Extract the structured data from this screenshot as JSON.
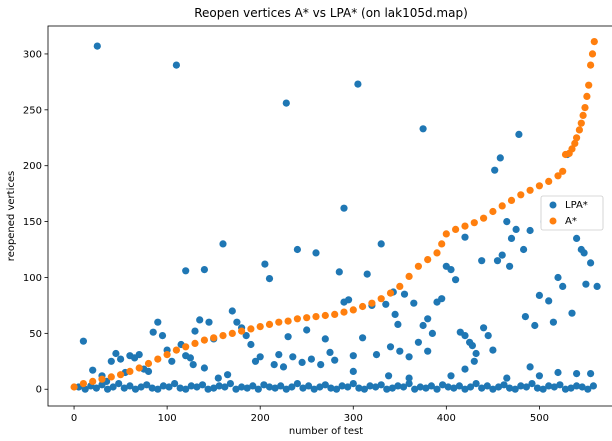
{
  "chart_data": {
    "type": "scatter",
    "title": "Reopen vertices A* vs LPA* (on lak105d.map)",
    "xlabel": "number of test",
    "ylabel": "reopened vertices",
    "xlim": [
      -28,
      578
    ],
    "ylim": [
      -15,
      325
    ],
    "xticks": [
      0,
      100,
      200,
      300,
      400,
      500
    ],
    "yticks": [
      0,
      50,
      100,
      150,
      200,
      250,
      300
    ],
    "grid": false,
    "legend_position": "center-right",
    "series": [
      {
        "name": "LPA*",
        "color": "#1f77b4",
        "points": [
          [
            25,
            307
          ],
          [
            110,
            290
          ],
          [
            228,
            256
          ],
          [
            305,
            273
          ],
          [
            375,
            233
          ],
          [
            478,
            228
          ],
          [
            530,
            210
          ],
          [
            290,
            162
          ],
          [
            458,
            207
          ],
          [
            452,
            196
          ],
          [
            465,
            150
          ],
          [
            470,
            135
          ],
          [
            490,
            142
          ],
          [
            475,
            143
          ],
          [
            483,
            125
          ],
          [
            505,
            150
          ],
          [
            540,
            135
          ],
          [
            545,
            125
          ],
          [
            555,
            113
          ],
          [
            520,
            100
          ],
          [
            548,
            122
          ],
          [
            260,
            122
          ],
          [
            240,
            125
          ],
          [
            330,
            130
          ],
          [
            160,
            130
          ],
          [
            315,
            103
          ],
          [
            285,
            105
          ],
          [
            205,
            112
          ],
          [
            210,
            99
          ],
          [
            120,
            106
          ],
          [
            140,
            107
          ],
          [
            400,
            110
          ],
          [
            405,
            107
          ],
          [
            420,
            136
          ],
          [
            438,
            115
          ],
          [
            455,
            115
          ],
          [
            460,
            120
          ],
          [
            468,
            110
          ],
          [
            410,
            98
          ],
          [
            395,
            81
          ],
          [
            390,
            78
          ],
          [
            500,
            84
          ],
          [
            510,
            79
          ],
          [
            525,
            92
          ],
          [
            550,
            94
          ],
          [
            343,
            87
          ],
          [
            355,
            85
          ],
          [
            290,
            78
          ],
          [
            295,
            80
          ],
          [
            320,
            75
          ],
          [
            335,
            76
          ],
          [
            345,
            67
          ],
          [
            348,
            58
          ],
          [
            365,
            77
          ],
          [
            380,
            63
          ],
          [
            385,
            50
          ],
          [
            375,
            57
          ],
          [
            415,
            51
          ],
          [
            420,
            48
          ],
          [
            428,
            39
          ],
          [
            432,
            32
          ],
          [
            440,
            55
          ],
          [
            445,
            48
          ],
          [
            425,
            42
          ],
          [
            450,
            35
          ],
          [
            485,
            65
          ],
          [
            495,
            57
          ],
          [
            515,
            60
          ],
          [
            535,
            68
          ],
          [
            562,
            92
          ],
          [
            10,
            43
          ],
          [
            45,
            32
          ],
          [
            50,
            27
          ],
          [
            60,
            30
          ],
          [
            70,
            31
          ],
          [
            85,
            51
          ],
          [
            90,
            60
          ],
          [
            95,
            48
          ],
          [
            100,
            35
          ],
          [
            105,
            25
          ],
          [
            115,
            40
          ],
          [
            125,
            28
          ],
          [
            130,
            52
          ],
          [
            135,
            62
          ],
          [
            145,
            60
          ],
          [
            150,
            45
          ],
          [
            170,
            70
          ],
          [
            175,
            60
          ],
          [
            180,
            55
          ],
          [
            185,
            48
          ],
          [
            190,
            40
          ],
          [
            200,
            29
          ],
          [
            215,
            22
          ],
          [
            220,
            31
          ],
          [
            230,
            47
          ],
          [
            235,
            29
          ],
          [
            250,
            53
          ],
          [
            255,
            27
          ],
          [
            270,
            45
          ],
          [
            275,
            33
          ],
          [
            280,
            26
          ],
          [
            300,
            30
          ],
          [
            310,
            46
          ],
          [
            325,
            31
          ],
          [
            340,
            38
          ],
          [
            350,
            34
          ],
          [
            360,
            29
          ],
          [
            370,
            42
          ],
          [
            380,
            34
          ],
          [
            20,
            17
          ],
          [
            30,
            12
          ],
          [
            35,
            7
          ],
          [
            40,
            25
          ],
          [
            55,
            15
          ],
          [
            65,
            28
          ],
          [
            75,
            18
          ],
          [
            80,
            16
          ],
          [
            120,
            30
          ],
          [
            128,
            22
          ],
          [
            140,
            19
          ],
          [
            155,
            10
          ],
          [
            165,
            13
          ],
          [
            195,
            25
          ],
          [
            225,
            20
          ],
          [
            245,
            24
          ],
          [
            265,
            22
          ],
          [
            300,
            16
          ],
          [
            338,
            12
          ],
          [
            360,
            10
          ],
          [
            405,
            12
          ],
          [
            420,
            18
          ],
          [
            430,
            25
          ],
          [
            465,
            10
          ],
          [
            490,
            20
          ],
          [
            500,
            12
          ],
          [
            520,
            15
          ],
          [
            540,
            14
          ],
          [
            555,
            14
          ],
          [
            5,
            2
          ],
          [
            12,
            0
          ],
          [
            18,
            3
          ],
          [
            24,
            1
          ],
          [
            30,
            4
          ],
          [
            36,
            0
          ],
          [
            42,
            2
          ],
          [
            48,
            5
          ],
          [
            54,
            1
          ],
          [
            60,
            3
          ],
          [
            66,
            0
          ],
          [
            72,
            2
          ],
          [
            78,
            4
          ],
          [
            84,
            1
          ],
          [
            90,
            0
          ],
          [
            96,
            3
          ],
          [
            102,
            2
          ],
          [
            108,
            5
          ],
          [
            114,
            1
          ],
          [
            120,
            0
          ],
          [
            126,
            3
          ],
          [
            132,
            2
          ],
          [
            138,
            4
          ],
          [
            144,
            0
          ],
          [
            150,
            1
          ],
          [
            156,
            3
          ],
          [
            162,
            2
          ],
          [
            168,
            5
          ],
          [
            174,
            0
          ],
          [
            180,
            2
          ],
          [
            186,
            1
          ],
          [
            192,
            3
          ],
          [
            198,
            0
          ],
          [
            204,
            4
          ],
          [
            210,
            2
          ],
          [
            216,
            1
          ],
          [
            222,
            3
          ],
          [
            228,
            0
          ],
          [
            234,
            2
          ],
          [
            240,
            5
          ],
          [
            246,
            1
          ],
          [
            252,
            3
          ],
          [
            258,
            0
          ],
          [
            264,
            2
          ],
          [
            270,
            4
          ],
          [
            276,
            1
          ],
          [
            282,
            0
          ],
          [
            288,
            3
          ],
          [
            294,
            2
          ],
          [
            300,
            5
          ],
          [
            306,
            1
          ],
          [
            312,
            0
          ],
          [
            318,
            3
          ],
          [
            324,
            2
          ],
          [
            330,
            4
          ],
          [
            336,
            0
          ],
          [
            342,
            1
          ],
          [
            348,
            3
          ],
          [
            354,
            2
          ],
          [
            360,
            5
          ],
          [
            366,
            0
          ],
          [
            372,
            2
          ],
          [
            378,
            1
          ],
          [
            384,
            3
          ],
          [
            390,
            0
          ],
          [
            396,
            4
          ],
          [
            402,
            2
          ],
          [
            408,
            1
          ],
          [
            414,
            3
          ],
          [
            420,
            0
          ],
          [
            426,
            2
          ],
          [
            432,
            5
          ],
          [
            438,
            1
          ],
          [
            444,
            3
          ],
          [
            450,
            0
          ],
          [
            456,
            2
          ],
          [
            462,
            4
          ],
          [
            468,
            1
          ],
          [
            474,
            0
          ],
          [
            480,
            3
          ],
          [
            486,
            2
          ],
          [
            492,
            5
          ],
          [
            498,
            1
          ],
          [
            504,
            0
          ],
          [
            510,
            3
          ],
          [
            516,
            2
          ],
          [
            522,
            4
          ],
          [
            528,
            0
          ],
          [
            534,
            1
          ],
          [
            540,
            3
          ],
          [
            546,
            2
          ],
          [
            552,
            0
          ],
          [
            558,
            3
          ]
        ]
      },
      {
        "name": "A*",
        "color": "#ff7f0e",
        "points": [
          [
            0,
            2
          ],
          [
            10,
            5
          ],
          [
            20,
            7
          ],
          [
            30,
            9
          ],
          [
            40,
            11
          ],
          [
            50,
            13
          ],
          [
            60,
            16
          ],
          [
            70,
            19
          ],
          [
            80,
            23
          ],
          [
            90,
            27
          ],
          [
            100,
            31
          ],
          [
            110,
            35
          ],
          [
            120,
            38
          ],
          [
            130,
            41
          ],
          [
            140,
            44
          ],
          [
            150,
            46
          ],
          [
            160,
            48
          ],
          [
            170,
            50
          ],
          [
            180,
            52
          ],
          [
            190,
            54
          ],
          [
            200,
            56
          ],
          [
            210,
            58
          ],
          [
            220,
            60
          ],
          [
            230,
            61
          ],
          [
            240,
            63
          ],
          [
            250,
            64
          ],
          [
            260,
            65
          ],
          [
            270,
            66
          ],
          [
            280,
            67
          ],
          [
            290,
            69
          ],
          [
            300,
            71
          ],
          [
            310,
            74
          ],
          [
            320,
            77
          ],
          [
            330,
            81
          ],
          [
            340,
            86
          ],
          [
            350,
            92
          ],
          [
            360,
            101
          ],
          [
            370,
            110
          ],
          [
            380,
            116
          ],
          [
            390,
            122
          ],
          [
            395,
            130
          ],
          [
            400,
            139
          ],
          [
            410,
            143
          ],
          [
            420,
            146
          ],
          [
            430,
            149
          ],
          [
            440,
            153
          ],
          [
            450,
            159
          ],
          [
            460,
            164
          ],
          [
            470,
            169
          ],
          [
            480,
            174
          ],
          [
            490,
            178
          ],
          [
            500,
            182
          ],
          [
            510,
            186
          ],
          [
            520,
            191
          ],
          [
            525,
            195
          ],
          [
            528,
            210
          ],
          [
            532,
            211
          ],
          [
            535,
            215
          ],
          [
            538,
            220
          ],
          [
            540,
            225
          ],
          [
            543,
            232
          ],
          [
            545,
            238
          ],
          [
            547,
            245
          ],
          [
            549,
            252
          ],
          [
            551,
            262
          ],
          [
            553,
            272
          ],
          [
            555,
            290
          ],
          [
            557,
            300
          ],
          [
            559,
            311
          ]
        ]
      }
    ]
  }
}
